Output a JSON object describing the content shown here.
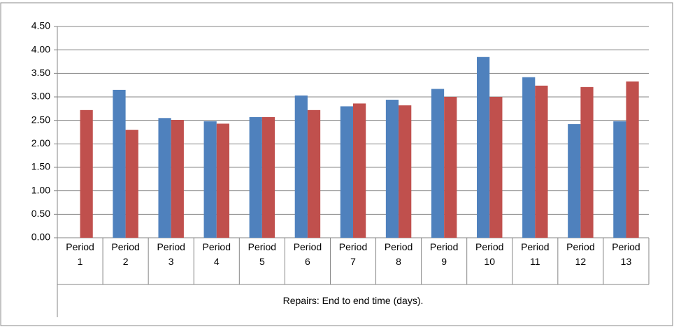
{
  "chart_data": {
    "type": "bar",
    "xlabel": "Repairs: End to end time (days).",
    "categories": [
      "Period 1",
      "Period 2",
      "Period 3",
      "Period 4",
      "Period 5",
      "Period 6",
      "Period 7",
      "Period 8",
      "Period 9",
      "Period 10",
      "Period 11",
      "Period 12",
      "Period 13"
    ],
    "series": [
      {
        "color": "#4f81bd",
        "values": [
          null,
          3.15,
          2.55,
          2.48,
          2.57,
          3.03,
          2.8,
          2.94,
          3.17,
          3.85,
          3.42,
          2.42,
          2.48
        ]
      },
      {
        "color": "#c0504d",
        "values": [
          2.72,
          2.3,
          2.51,
          2.43,
          2.57,
          2.72,
          2.86,
          2.82,
          3.0,
          3.0,
          3.24,
          3.21,
          3.33
        ]
      }
    ],
    "ylim": [
      0,
      4.5
    ],
    "yticks": [
      {
        "value": 0,
        "label": "0.00"
      },
      {
        "value": 0.5,
        "label": "0.50"
      },
      {
        "value": 1,
        "label": "1.00"
      },
      {
        "value": 1.5,
        "label": "1.50"
      },
      {
        "value": 2,
        "label": "2.00"
      },
      {
        "value": 2.5,
        "label": "2.50"
      },
      {
        "value": 3,
        "label": "3.00"
      },
      {
        "value": 3.5,
        "label": "3.50"
      },
      {
        "value": 4,
        "label": "4.00"
      },
      {
        "value": 4.5,
        "label": "4.50"
      }
    ],
    "grid": true
  }
}
